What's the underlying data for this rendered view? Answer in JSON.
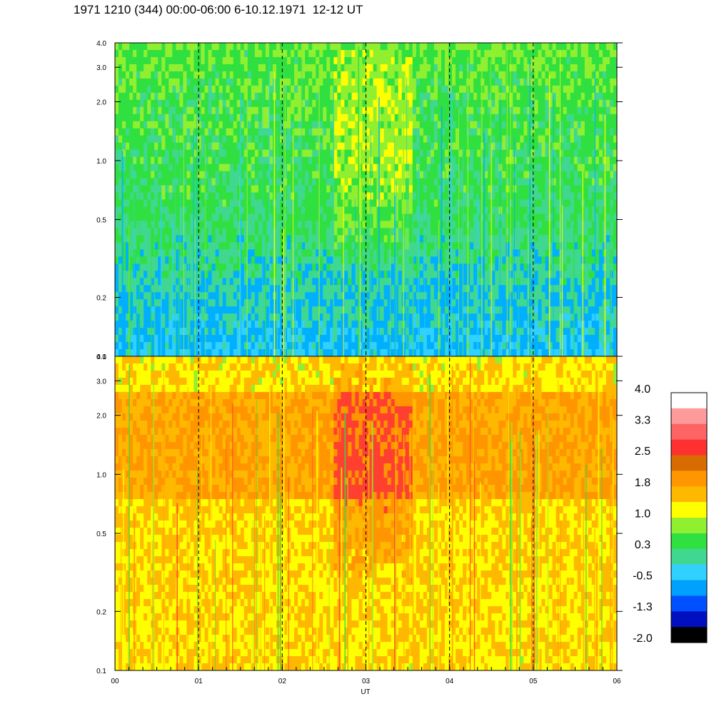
{
  "title": "1971 1210 (344) 00:00-06:00 6-10.12.1971  12-12 UT",
  "chart_data": {
    "type": "heatmap",
    "xlabel": "UT",
    "x_tick_labels": [
      "00",
      "01",
      "02",
      "03",
      "04",
      "05",
      "06"
    ],
    "xlim": [
      0,
      6
    ],
    "dashed_gridlines_x": [
      1,
      2,
      3,
      4,
      5
    ],
    "y_scale": "log",
    "ylim": [
      0.1,
      4.0
    ],
    "y_tick_labels": [
      "0.1",
      "0.2",
      "0.5",
      "1.0",
      "2.0",
      "3.0",
      "4.0"
    ],
    "y_ticks": [
      0.1,
      0.2,
      0.5,
      1.0,
      2.0,
      3.0,
      4.0
    ],
    "panels": [
      {
        "name": "upper",
        "dominant_colors": [
          "#00b0ff",
          "#40d87a",
          "#30e040",
          "#90f030"
        ],
        "enhanced_band_x": [
          2.6,
          3.55
        ]
      },
      {
        "name": "lower",
        "dominant_colors": [
          "#ffff00",
          "#ffb800",
          "#ff9600",
          "#ff4030"
        ],
        "enhanced_band_x": [
          2.6,
          3.55
        ]
      }
    ],
    "colorbar": {
      "tick_labels": [
        "4.0",
        "3.3",
        "2.5",
        "1.8",
        "1.0",
        "0.3",
        "-0.5",
        "-1.3",
        "-2.0"
      ],
      "colors": [
        "#ffffff",
        "#ff9a9a",
        "#ff6464",
        "#ff3030",
        "#d86c00",
        "#ff9600",
        "#ffb800",
        "#ffff00",
        "#90f030",
        "#30e040",
        "#40d890",
        "#30d0ff",
        "#00a0ff",
        "#0050ff",
        "#0010c0",
        "#000000"
      ]
    }
  }
}
